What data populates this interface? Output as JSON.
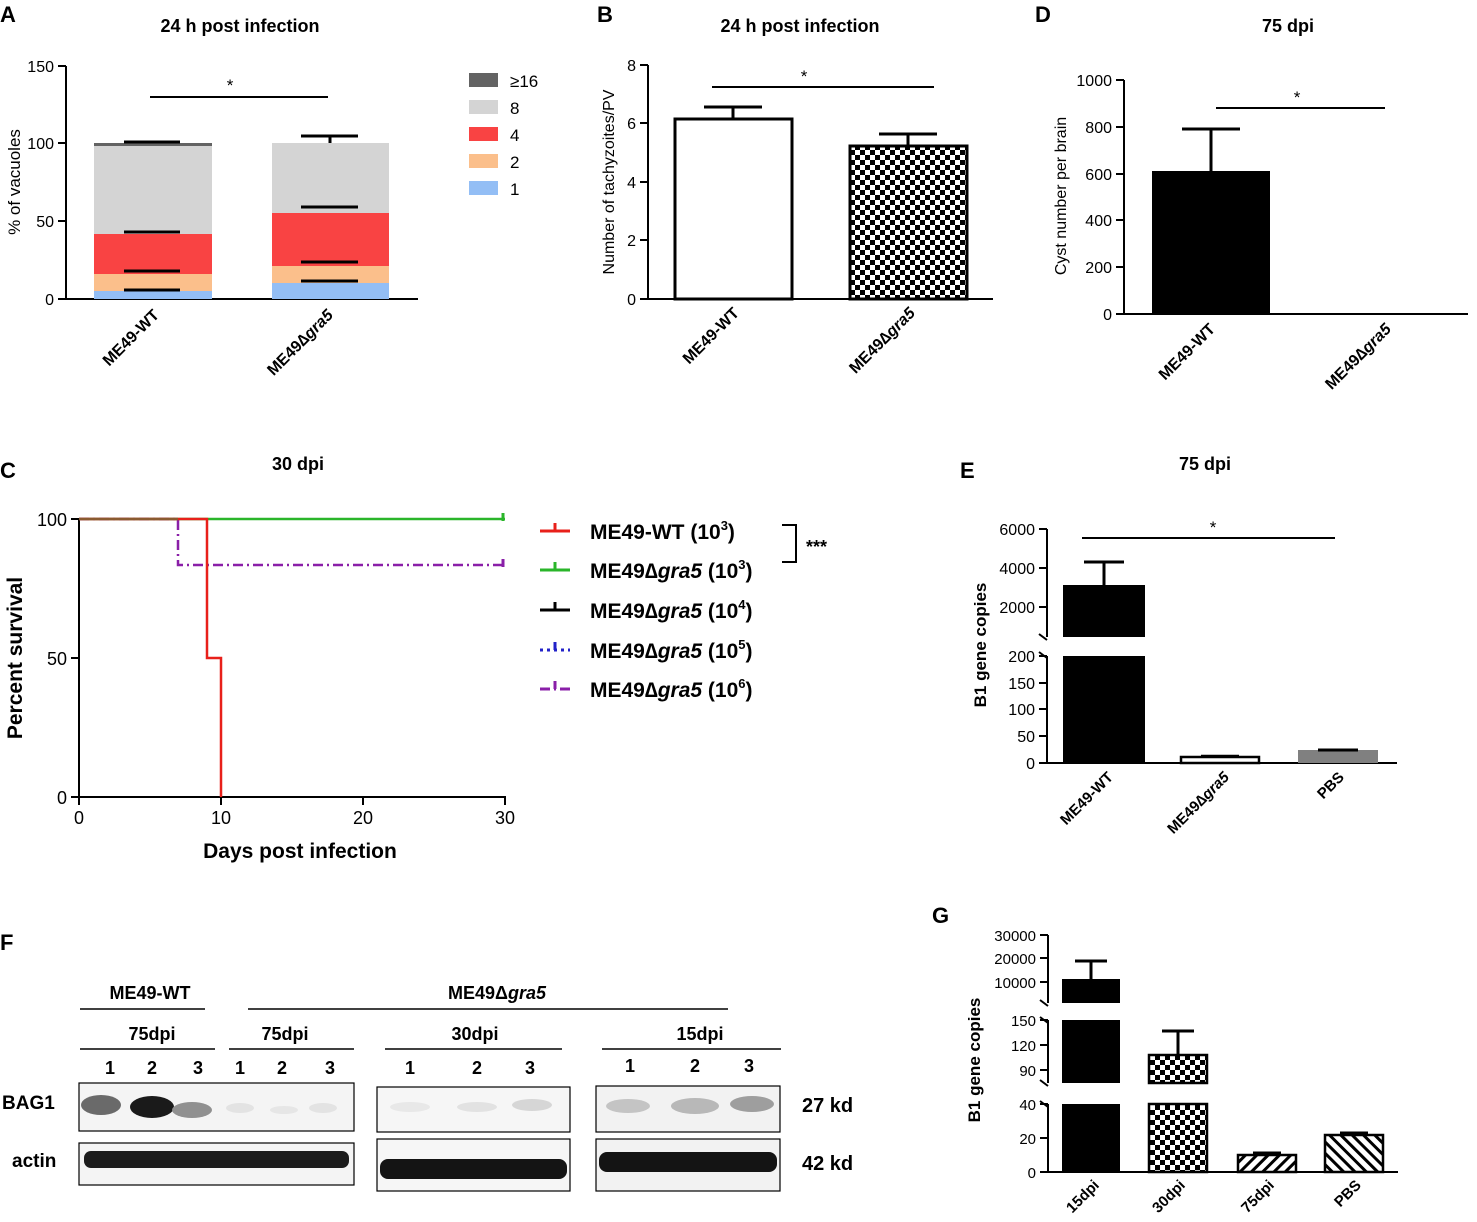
{
  "figure": {
    "panelA": {
      "letter": "A",
      "title": "24 h post infection",
      "ylabel": "%  of vacuoles",
      "yticks": [
        "150",
        "100",
        "50",
        "0"
      ],
      "sig": "*",
      "legend": [
        {
          "label": "≥16",
          "color": "#636363"
        },
        {
          "label": "8",
          "color": "#d4d4d4"
        },
        {
          "label": "4",
          "color": "#f94343"
        },
        {
          "label": "2",
          "color": "#fbbf8b"
        },
        {
          "label": "1",
          "color": "#93bef5"
        }
      ],
      "x1": "ME49-WT",
      "x2": "ME49",
      "x2_italic": "gra5"
    },
    "panelB": {
      "letter": "B",
      "title": "24 h post infection",
      "ylabel": "Number of tachyzoites/PV",
      "yticks": [
        "8",
        "6",
        "4",
        "2",
        "0"
      ],
      "sig": "*",
      "x1": "ME49-WT",
      "x2": "ME49",
      "x2_italic": "gra5"
    },
    "panelD": {
      "letter": "D",
      "title": "75 dpi",
      "ylabel": "Cyst number per brain",
      "yticks": [
        "1000",
        "800",
        "600",
        "400",
        "200",
        "0"
      ],
      "sig": "*",
      "x1": "ME49-WT",
      "x2": "ME49",
      "x2_italic": "gra5"
    },
    "panelC": {
      "letter": "C",
      "title": "30 dpi",
      "ylabel": "Percent survival",
      "xlabel": "Days post infection",
      "yticks": [
        "100",
        "50",
        "0"
      ],
      "xticks": [
        "0",
        "10",
        "20",
        "30"
      ],
      "sig": "***",
      "legend": [
        {
          "label": "ME49-WT (10",
          "italic": "",
          "suffix": "(10",
          "exp": "3",
          "color": "#e8201a"
        },
        {
          "label": "ME49",
          "italic": "gra5",
          "suffix": " (10",
          "exp": "3",
          "color": "#2ab52a"
        },
        {
          "label": "ME49",
          "italic": "gra5",
          "suffix": " (10",
          "exp": "4",
          "color": "#000000"
        },
        {
          "label": "ME49",
          "italic": "gra5",
          "suffix": " (10",
          "exp": "5",
          "color": "#2222c8"
        },
        {
          "label": "ME49",
          "italic": "gra5",
          "suffix": " (10",
          "exp": "6",
          "color": "#8a1fa8"
        }
      ]
    },
    "panelE": {
      "letter": "E",
      "title": "75 dpi",
      "ylabel": "B1 gene copies",
      "yticks_top": [
        "6000",
        "4000",
        "2000"
      ],
      "yticks_bottom": [
        "200",
        "150",
        "100",
        "50",
        "0"
      ],
      "sig": "*",
      "x1": "ME49-WT",
      "x2": "ME49",
      "x2_italic": "gra5",
      "x3": "PBS"
    },
    "panelF": {
      "letter": "F",
      "group_wt": "ME49-WT",
      "group_ko": "ME49Δ",
      "group_ko_italic": "gra5",
      "time_wt": "75dpi",
      "time_ko": [
        "75dpi",
        "30dpi",
        "15dpi"
      ],
      "lanes": [
        "1",
        "2",
        "3"
      ],
      "row1": "BAG1",
      "row2": "actin",
      "size1": "27 kd",
      "size2": "42 kd"
    },
    "panelG": {
      "letter": "G",
      "ylabel": "B1 gene copies",
      "yticks_top": [
        "30000",
        "20000",
        "10000"
      ],
      "yticks_mid": [
        "150",
        "120",
        "90"
      ],
      "yticks_bottom": [
        "40",
        "20",
        "0"
      ],
      "x": [
        "15dpi",
        "30dpi",
        "75dpi",
        "PBS"
      ]
    }
  },
  "chart_data": [
    {
      "panel": "A",
      "type": "bar",
      "stacked": true,
      "title": "24 h post infection",
      "ylabel": "% of vacuoles",
      "ylim": [
        0,
        150
      ],
      "categories": [
        "ME49-WT",
        "ME49Δgra5"
      ],
      "series": [
        {
          "name": "1",
          "values": [
            5,
            10
          ]
        },
        {
          "name": "2",
          "values": [
            11,
            11
          ]
        },
        {
          "name": "4",
          "values": [
            26,
            34
          ]
        },
        {
          "name": "8",
          "values": [
            57,
            45
          ]
        },
        {
          "name": "≥16",
          "values": [
            2,
            0
          ]
        }
      ],
      "significance": "*"
    },
    {
      "panel": "B",
      "type": "bar",
      "title": "24 h post infection",
      "ylabel": "Number of tachyzoites/PV",
      "ylim": [
        0,
        8
      ],
      "categories": [
        "ME49-WT",
        "ME49Δgra5"
      ],
      "values": [
        6.15,
        5.2
      ],
      "errors": [
        0.45,
        0.42
      ],
      "significance": "*"
    },
    {
      "panel": "D",
      "type": "bar",
      "title": "75 dpi",
      "ylabel": "Cyst number per brain",
      "ylim": [
        0,
        1000
      ],
      "categories": [
        "ME49-WT",
        "ME49Δgra5"
      ],
      "values": [
        610,
        0
      ],
      "errors": [
        175,
        0
      ],
      "significance": "*"
    },
    {
      "panel": "C",
      "type": "line",
      "title": "30 dpi",
      "xlabel": "Days post infection",
      "ylabel": "Percent survival",
      "xlim": [
        0,
        30
      ],
      "ylim": [
        0,
        100
      ],
      "series": [
        {
          "name": "ME49-WT (10^3)",
          "x": [
            0,
            9,
            9,
            10,
            10
          ],
          "y": [
            100,
            100,
            50,
            50,
            0
          ]
        },
        {
          "name": "ME49Δgra5 (10^3)",
          "x": [
            0,
            30
          ],
          "y": [
            100,
            100
          ]
        },
        {
          "name": "ME49Δgra5 (10^4)",
          "x": [
            0,
            30
          ],
          "y": [
            100,
            100
          ]
        },
        {
          "name": "ME49Δgra5 (10^5)",
          "x": [
            0,
            30
          ],
          "y": [
            100,
            100
          ]
        },
        {
          "name": "ME49Δgra5 (10^6)",
          "x": [
            0,
            7,
            7,
            30
          ],
          "y": [
            100,
            100,
            83.3,
            83.3
          ]
        }
      ],
      "significance": "***"
    },
    {
      "panel": "E",
      "type": "bar",
      "title": "75 dpi",
      "ylabel": "B1 gene copies",
      "categories": [
        "ME49-WT",
        "ME49Δgra5",
        "PBS"
      ],
      "values": [
        3000,
        10,
        22
      ],
      "errors": [
        1300,
        2,
        2
      ],
      "axis_break": [
        200,
        6000
      ],
      "significance": "*"
    },
    {
      "panel": "G",
      "type": "bar",
      "ylabel": "B1 gene copies",
      "categories": [
        "15dpi",
        "30dpi",
        "75dpi",
        "PBS"
      ],
      "values": [
        11000,
        108,
        10,
        22
      ],
      "errors": [
        8000,
        30,
        2,
        1
      ],
      "axis_breaks": [
        [
          40,
          90
        ],
        [
          150,
          10000
        ]
      ]
    }
  ]
}
